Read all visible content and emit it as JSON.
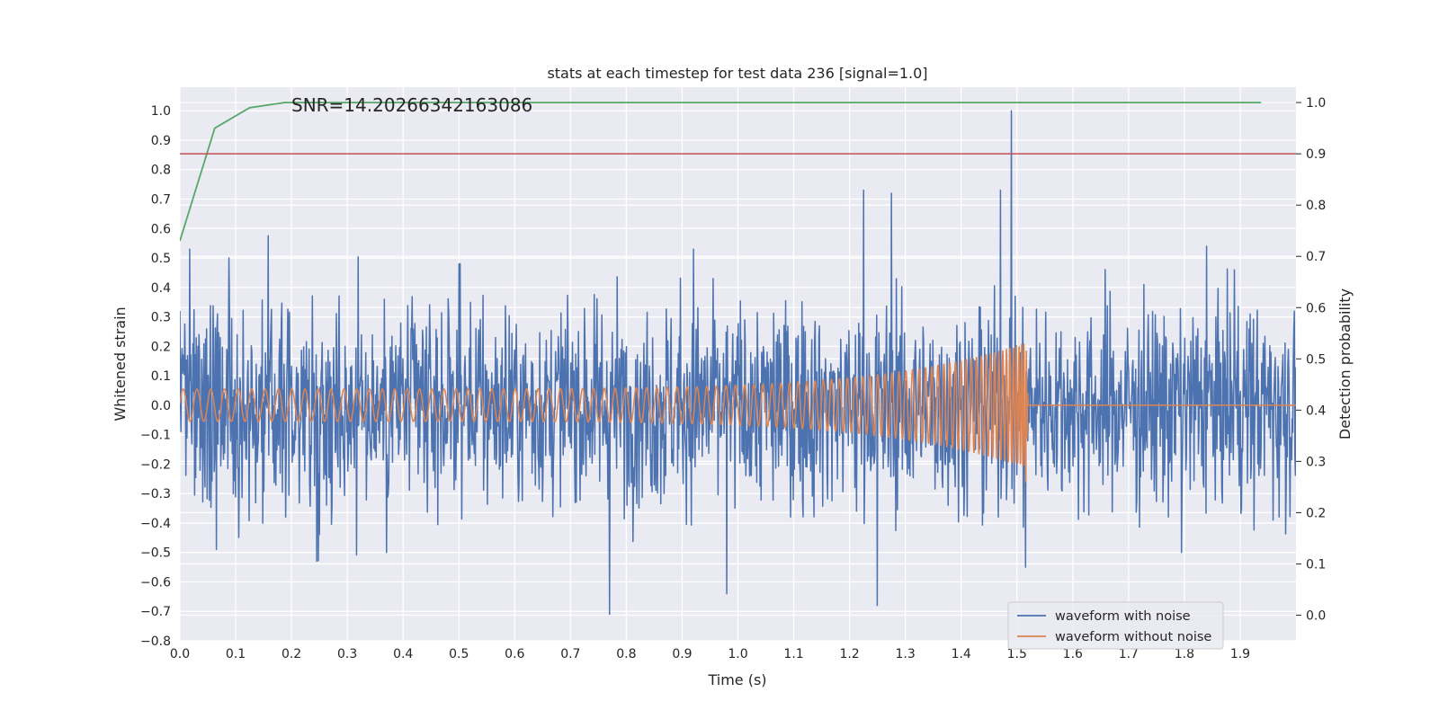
{
  "chart_data": {
    "type": "line",
    "title": "stats at each timestep for test data 236 [signal=1.0]",
    "xlabel": "Time (s)",
    "ylabel": "Whitened strain",
    "y2label": "Detection probability",
    "annotation": "SNR=14.20266342163086",
    "xlim": [
      0.0,
      2.0
    ],
    "ylim": [
      -0.8,
      1.08
    ],
    "y2lim": [
      -0.05,
      1.03
    ],
    "xticks": [
      "0.0",
      "0.1",
      "0.2",
      "0.3",
      "0.4",
      "0.5",
      "0.6",
      "0.7",
      "0.8",
      "0.9",
      "1.0",
      "1.1",
      "1.2",
      "1.3",
      "1.4",
      "1.5",
      "1.6",
      "1.7",
      "1.8",
      "1.9"
    ],
    "yticks": [
      "1.0",
      "0.9",
      "0.8",
      "0.7",
      "0.6",
      "0.5",
      "0.4",
      "0.3",
      "0.2",
      "0.1",
      "0.0",
      "−0.1",
      "−0.2",
      "−0.3",
      "−0.4",
      "−0.5",
      "−0.6",
      "−0.7",
      "−0.8"
    ],
    "y2ticks": [
      "1.0",
      "0.9",
      "0.8",
      "0.7",
      "0.6",
      "0.5",
      "0.4",
      "0.3",
      "0.2",
      "0.1",
      "0.0"
    ],
    "grid": true,
    "legend_placement": "lower-right",
    "background": "#eaeaf2",
    "series": [
      {
        "name": "waveform with noise",
        "color": "#4c72b0",
        "axis": "left",
        "kind": "noise",
        "noise_std": 0.17,
        "samples": 2048,
        "spikes": [
          [
            0.0,
            0.32
          ],
          [
            0.018,
            0.53
          ],
          [
            0.065,
            -0.49
          ],
          [
            0.088,
            0.5
          ],
          [
            0.245,
            -0.53
          ],
          [
            0.37,
            -0.5
          ],
          [
            0.5,
            0.48
          ],
          [
            0.77,
            -0.71
          ],
          [
            0.92,
            0.53
          ],
          [
            0.98,
            -0.64
          ],
          [
            1.225,
            0.73
          ],
          [
            1.25,
            -0.68
          ],
          [
            1.275,
            0.72
          ],
          [
            1.47,
            0.73
          ],
          [
            1.49,
            1.0
          ],
          [
            1.515,
            -0.55
          ],
          [
            1.795,
            -0.5
          ],
          [
            1.84,
            0.54
          ],
          [
            1.89,
            0.46
          ]
        ]
      },
      {
        "name": "waveform without noise",
        "color": "#dd8452",
        "axis": "left",
        "kind": "chirp",
        "start_amplitude": 0.055,
        "peak_amplitude": 0.21,
        "start_frequency_hz": 40,
        "merger_time": 1.515,
        "end_time": 1.52
      },
      {
        "name": "",
        "color": "#55a868",
        "axis": "right",
        "kind": "points",
        "x": [
          0.0,
          0.0625,
          0.125,
          0.1875,
          0.25,
          0.5,
          1.0,
          1.5,
          1.9375
        ],
        "y": [
          0.73,
          0.95,
          0.99,
          1.0,
          1.0,
          1.0,
          1.0,
          1.0,
          1.0
        ]
      },
      {
        "name": "",
        "color": "#c44e52",
        "axis": "right",
        "kind": "hline",
        "y": 0.9
      }
    ]
  }
}
